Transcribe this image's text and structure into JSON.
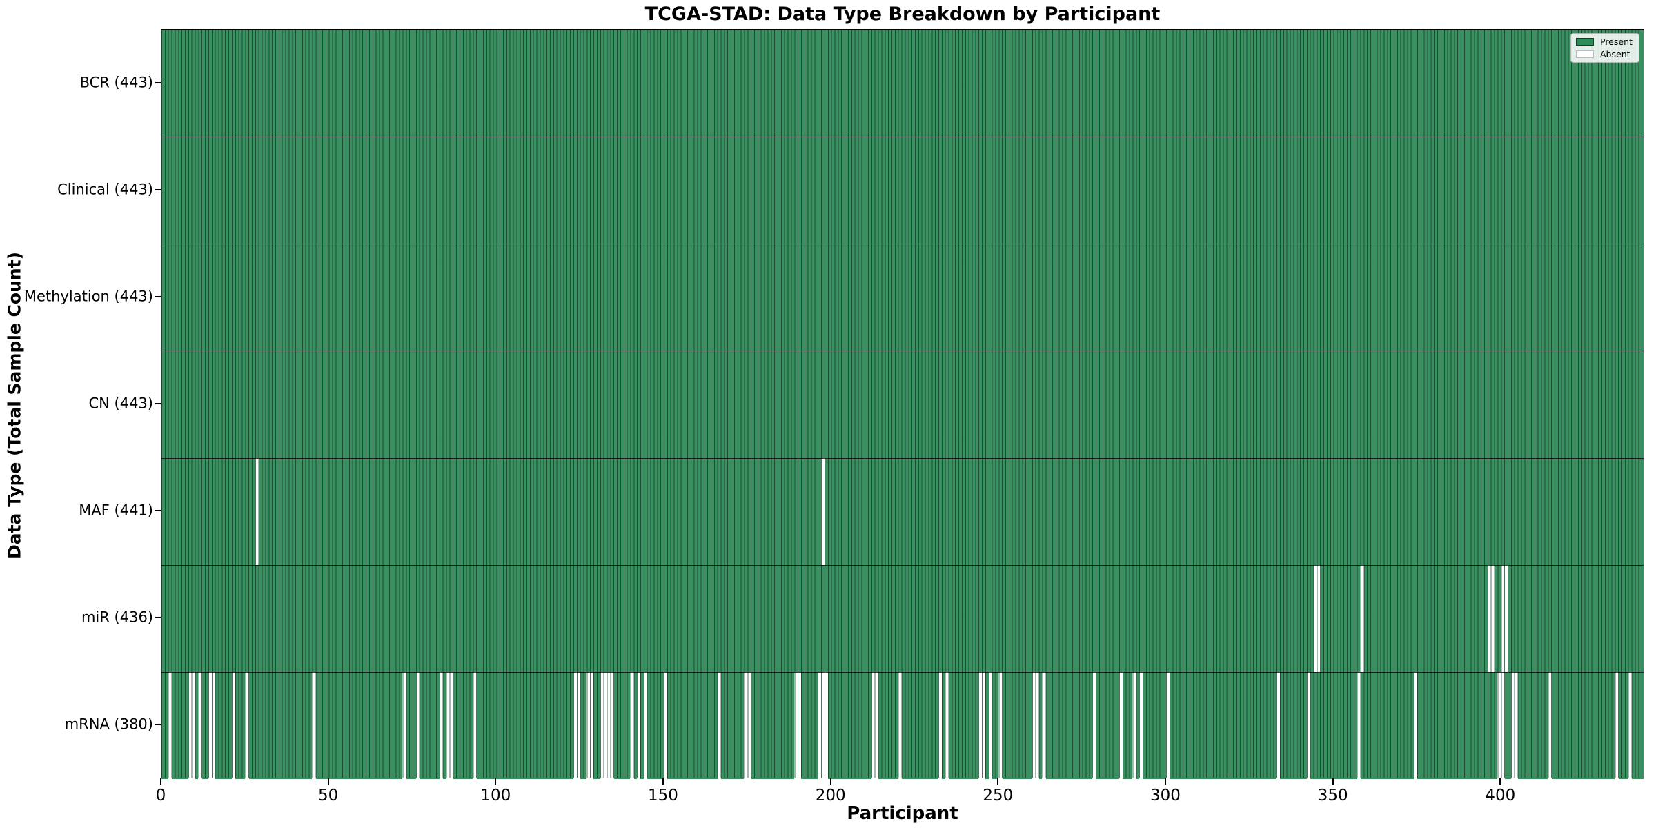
{
  "title": "TCGA-STAD: Data Type Breakdown by Participant",
  "xlabel": "Participant",
  "ylabel": "Data Type (Total Sample Count)",
  "legend": {
    "present_label": "Present",
    "absent_label": "Absent"
  },
  "colors": {
    "present_fill": "#3B9062",
    "legend_present": "#2E8B57",
    "absent_fill": "#FFFFFF",
    "bar_edge": "rgba(13,48,30,0.7)",
    "row_separator": "rgba(0,0,0,0.78)",
    "spine": "#000000"
  },
  "chart_data": {
    "type": "heatmap",
    "title": "TCGA-STAD: Data Type Breakdown by Participant",
    "xlabel": "Participant",
    "ylabel": "Data Type (Total Sample Count)",
    "legend_entries": [
      "Present",
      "Absent"
    ],
    "legend_position": "upper right",
    "n_participants": 443,
    "xlim": [
      0,
      443
    ],
    "x_ticks": [
      0,
      50,
      100,
      150,
      200,
      250,
      300,
      350,
      400
    ],
    "rows": [
      {
        "label": "BCR (443)",
        "data_type": "BCR",
        "total_count": 443,
        "absent_participants": []
      },
      {
        "label": "Clinical (443)",
        "data_type": "Clinical",
        "total_count": 443,
        "absent_participants": []
      },
      {
        "label": "Methylation (443)",
        "data_type": "Methylation",
        "total_count": 443,
        "absent_participants": []
      },
      {
        "label": "CN (443)",
        "data_type": "CN",
        "total_count": 443,
        "absent_participants": []
      },
      {
        "label": "MAF (441)",
        "data_type": "MAF",
        "total_count": 441,
        "absent_participants": [
          28,
          197
        ]
      },
      {
        "label": "miR (436)",
        "data_type": "miR",
        "total_count": 436,
        "absent_participants": [
          344,
          345,
          358,
          396,
          397,
          400,
          401
        ]
      },
      {
        "label": "mRNA (380)",
        "data_type": "mRNA",
        "total_count": 380,
        "absent_participants": [
          2,
          8,
          9,
          11,
          14,
          15,
          21,
          25,
          45,
          72,
          76,
          83,
          85,
          86,
          93,
          123,
          124,
          127,
          128,
          131,
          132,
          133,
          134,
          140,
          142,
          144,
          150,
          166,
          174,
          175,
          189,
          190,
          196,
          197,
          198,
          212,
          213,
          220,
          232,
          234,
          244,
          245,
          247,
          250,
          260,
          261,
          263,
          278,
          286,
          290,
          292,
          300,
          333,
          342,
          357,
          374,
          399,
          400,
          403,
          404,
          414,
          434,
          438
        ]
      }
    ]
  }
}
